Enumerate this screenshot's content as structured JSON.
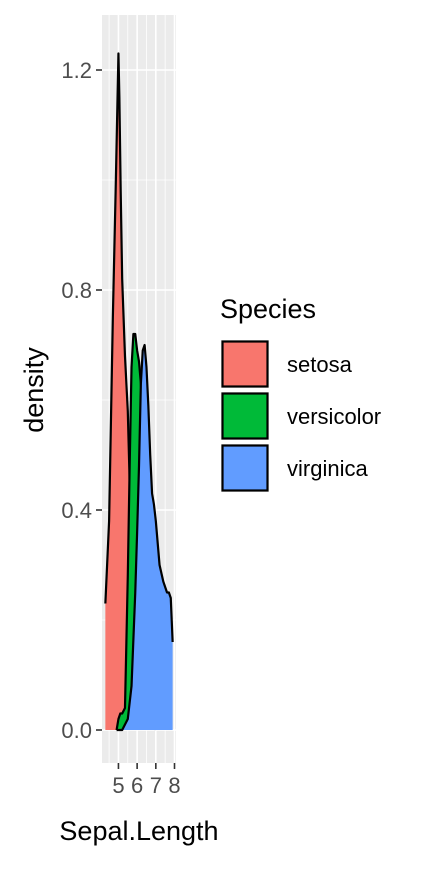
{
  "chart_data": {
    "type": "area",
    "subtype": "density",
    "title": "",
    "xlabel": "Sepal.Length",
    "ylabel": "density",
    "x_range": [
      4.3,
      7.9
    ],
    "xlim": [
      4.12,
      8.08
    ],
    "ylim": [
      -0.06,
      1.3
    ],
    "x_ticks": [
      5,
      6,
      7,
      8
    ],
    "x_tick_labels": [
      "5",
      "6",
      "7",
      "8"
    ],
    "y_ticks": [
      0.0,
      0.4,
      0.8,
      1.2
    ],
    "y_tick_labels": [
      "0.0",
      "0.4",
      "0.8",
      "1.2"
    ],
    "grid": true,
    "legend": {
      "title": "Species",
      "position": "right",
      "entries": [
        "setosa",
        "versicolor",
        "virginica"
      ]
    },
    "series": [
      {
        "name": "setosa",
        "color": "#F8766D",
        "x": [
          4.3,
          4.5,
          4.7,
          4.85,
          5.0,
          5.05,
          5.12,
          5.2,
          5.35,
          5.5,
          5.7,
          5.8
        ],
        "y": [
          0.23,
          0.38,
          0.75,
          0.98,
          1.23,
          1.15,
          0.98,
          0.82,
          0.68,
          0.58,
          0.32,
          0.18
        ]
      },
      {
        "name": "versicolor",
        "color": "#00BA38",
        "x": [
          4.9,
          5.0,
          5.1,
          5.2,
          5.35,
          5.5,
          5.6,
          5.7,
          5.8,
          5.9,
          6.0,
          6.1,
          6.2,
          6.3,
          6.4,
          6.5,
          6.6,
          6.7,
          6.8,
          6.9,
          7.0
        ],
        "y": [
          0.0,
          0.02,
          0.03,
          0.03,
          0.04,
          0.28,
          0.48,
          0.66,
          0.72,
          0.72,
          0.69,
          0.67,
          0.63,
          0.57,
          0.5,
          0.41,
          0.31,
          0.2,
          0.12,
          0.05,
          0.0
        ]
      },
      {
        "name": "virginica",
        "color": "#619CFF",
        "x": [
          4.9,
          5.2,
          5.5,
          5.7,
          5.9,
          6.0,
          6.1,
          6.2,
          6.3,
          6.4,
          6.5,
          6.6,
          6.7,
          6.8,
          6.9,
          7.0,
          7.2,
          7.4,
          7.6,
          7.7,
          7.8,
          7.9
        ],
        "y": [
          0.0,
          0.0,
          0.02,
          0.08,
          0.25,
          0.36,
          0.48,
          0.63,
          0.69,
          0.7,
          0.66,
          0.59,
          0.5,
          0.43,
          0.41,
          0.38,
          0.3,
          0.27,
          0.25,
          0.25,
          0.24,
          0.16
        ]
      }
    ]
  }
}
